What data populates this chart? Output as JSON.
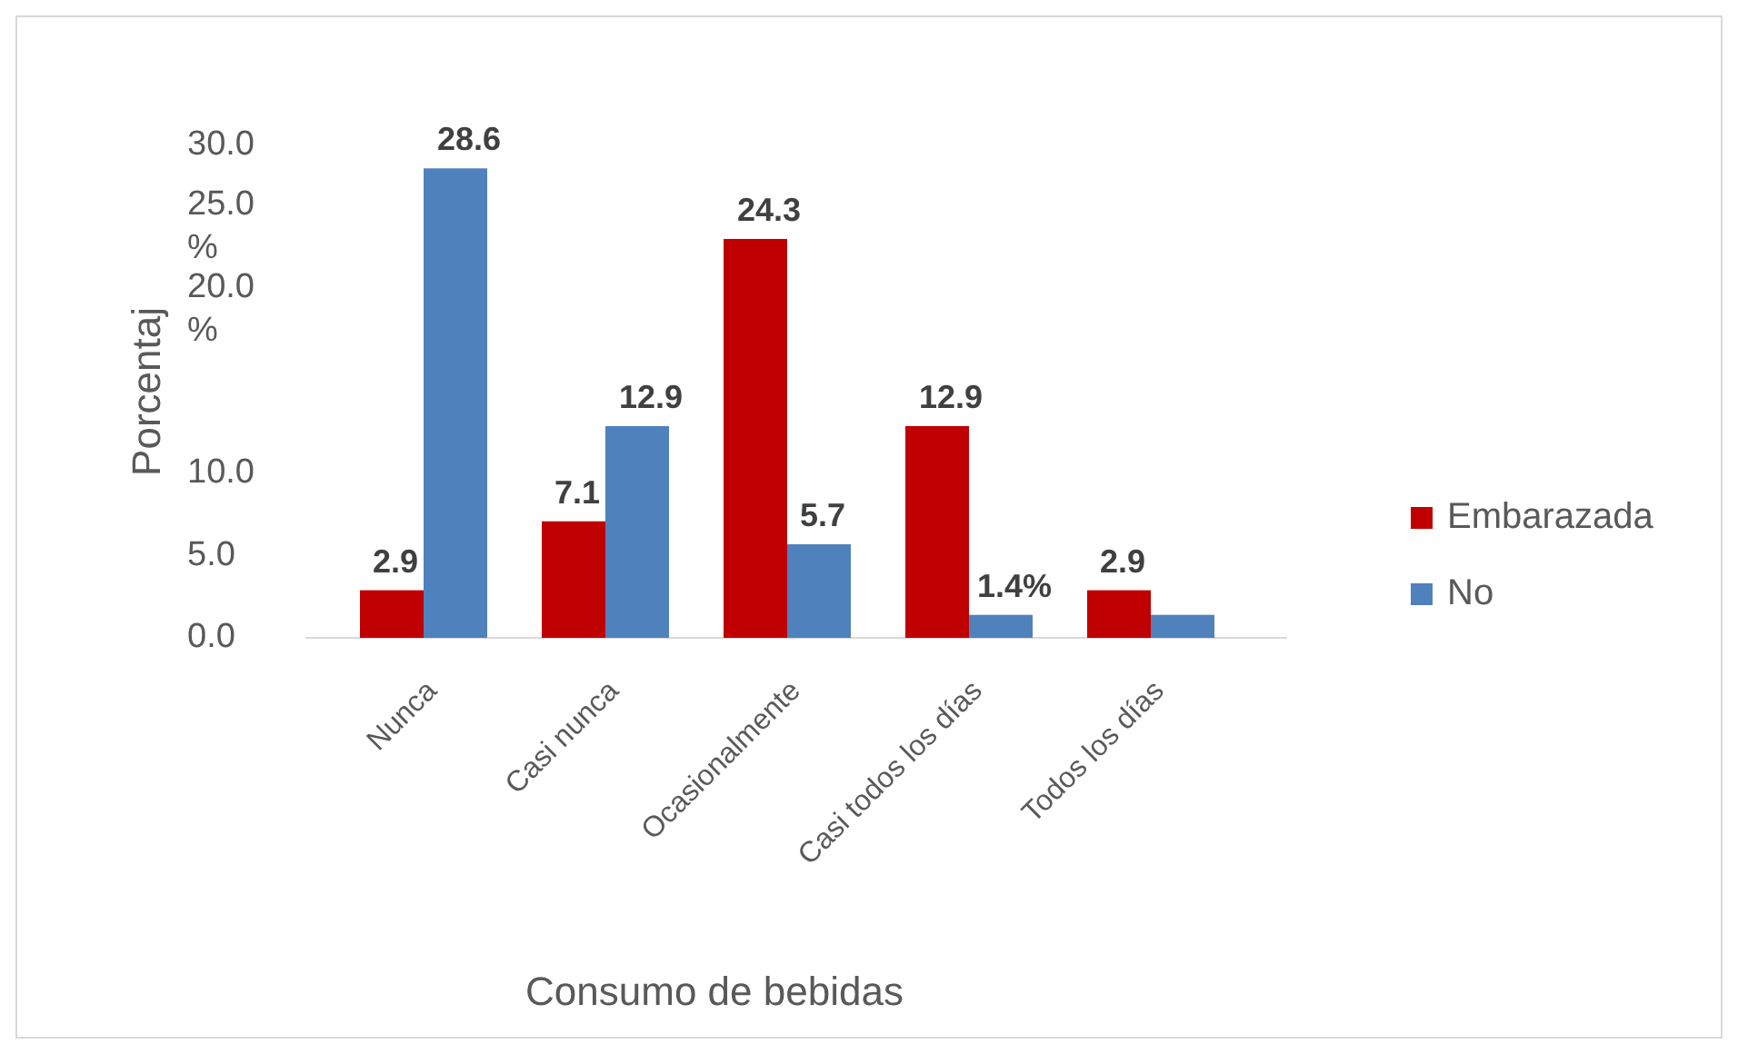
{
  "chart_data": {
    "type": "bar",
    "xlabel": "Consumo de bebidas",
    "ylabel": "Porcentaj",
    "categories": [
      "Nunca",
      "Casi nunca",
      "Ocasionalmente",
      "Casi todos los días",
      "Todos los días"
    ],
    "series": [
      {
        "name": "Embarazada",
        "color": "#c00000",
        "values": [
          2.9,
          7.1,
          24.3,
          12.9,
          2.9
        ],
        "value_labels": [
          "2.9",
          "7.1",
          "24.3",
          "12.9",
          "2.9"
        ]
      },
      {
        "name": "No",
        "color": "#4f81bd",
        "values": [
          28.6,
          12.9,
          5.7,
          1.4,
          1.4
        ],
        "value_labels": [
          "28.6",
          "12.9",
          "5.7",
          "1.4%",
          null
        ]
      }
    ],
    "ylim": [
      0,
      30
    ],
    "yticks": [
      {
        "value": 0,
        "label": "0.0"
      },
      {
        "value": 5,
        "label": "5.0"
      },
      {
        "value": 10,
        "label": "10.0"
      },
      {
        "value": 20,
        "label": "20.0 %"
      },
      {
        "value": 25,
        "label": "25.0 %"
      },
      {
        "value": 30,
        "label": "30.0"
      }
    ],
    "grid": false,
    "legend": "right"
  }
}
